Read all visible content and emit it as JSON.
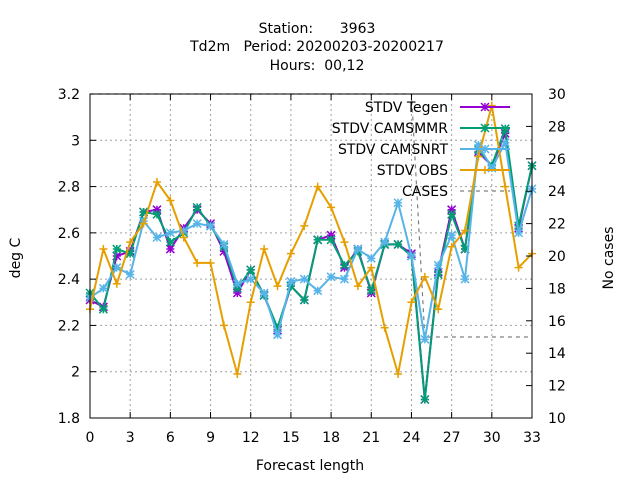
{
  "chart_data": {
    "type": "line",
    "title_lines": [
      "Station:      3963",
      "Td2m   Period: 20200203-20200217",
      "Hours:  00,12"
    ],
    "xlabel": "Forecast length",
    "ylabel": "deg C",
    "y2label": "No cases",
    "xlim": [
      0,
      33
    ],
    "ylim": [
      1.8,
      3.2
    ],
    "y2lim": [
      10,
      30
    ],
    "xticks": [
      0,
      3,
      6,
      9,
      12,
      15,
      18,
      21,
      24,
      27,
      30,
      33
    ],
    "yticks": [
      1.8,
      2,
      2.2,
      2.4,
      2.6,
      2.8,
      3,
      3.2
    ],
    "y2ticks": [
      10,
      12,
      14,
      16,
      18,
      20,
      22,
      24,
      26,
      28,
      30
    ],
    "grid": true,
    "legend_position": "top-right",
    "x": [
      0,
      1,
      2,
      3,
      4,
      5,
      6,
      7,
      8,
      9,
      10,
      11,
      12,
      13,
      14,
      15,
      16,
      17,
      18,
      19,
      20,
      21,
      22,
      23,
      24,
      25,
      26,
      27,
      28,
      29,
      30,
      31,
      32,
      33
    ],
    "series": [
      {
        "name": "STDV Tegen",
        "color": "#9400d3",
        "marker": "star",
        "axis": "y1",
        "values": [
          2.31,
          2.28,
          2.5,
          2.52,
          2.69,
          2.7,
          2.53,
          2.62,
          2.7,
          2.64,
          2.52,
          2.34,
          2.44,
          2.33,
          2.18,
          2.37,
          2.31,
          2.57,
          2.59,
          2.45,
          2.53,
          2.34,
          2.55,
          2.55,
          2.51,
          1.88,
          2.43,
          2.7,
          2.53,
          2.95,
          2.89,
          3.03,
          2.62,
          2.89
        ]
      },
      {
        "name": "STDV CAMSMMR",
        "color": "#009e73",
        "marker": "star",
        "axis": "y1",
        "values": [
          2.34,
          2.27,
          2.53,
          2.51,
          2.69,
          2.68,
          2.56,
          2.6,
          2.71,
          2.63,
          2.54,
          2.36,
          2.44,
          2.33,
          2.19,
          2.37,
          2.31,
          2.57,
          2.57,
          2.46,
          2.52,
          2.35,
          2.55,
          2.55,
          2.5,
          1.88,
          2.42,
          2.68,
          2.53,
          2.96,
          2.89,
          3.05,
          2.63,
          2.89
        ]
      },
      {
        "name": "STDV CAMSNRT",
        "color": "#56b4e9",
        "marker": "star",
        "axis": "y1",
        "values": [
          2.32,
          2.36,
          2.45,
          2.42,
          2.65,
          2.58,
          2.6,
          2.61,
          2.64,
          2.63,
          2.55,
          2.38,
          2.4,
          2.34,
          2.16,
          2.39,
          2.4,
          2.35,
          2.41,
          2.4,
          2.53,
          2.49,
          2.56,
          2.73,
          2.5,
          2.14,
          2.46,
          2.59,
          2.4,
          2.98,
          2.88,
          2.99,
          2.6,
          2.79
        ]
      },
      {
        "name": "STDV OBS",
        "color": "#e69f00",
        "marker": "plus",
        "axis": "y1",
        "values": [
          2.27,
          2.53,
          2.38,
          2.56,
          2.64,
          2.82,
          2.74,
          2.58,
          2.47,
          2.47,
          2.2,
          1.99,
          2.3,
          2.53,
          2.37,
          2.51,
          2.63,
          2.8,
          2.71,
          2.56,
          2.37,
          2.45,
          2.19,
          1.99,
          2.3,
          2.41,
          2.27,
          2.54,
          2.61,
          2.93,
          3.15,
          2.8,
          2.45,
          2.51
        ]
      },
      {
        "name": "CASES",
        "color": "#808080",
        "marker": "none",
        "dashed": true,
        "axis": "y2",
        "values": [
          30,
          30,
          30,
          30,
          30,
          30,
          30,
          30,
          30,
          30,
          30,
          30,
          30,
          30,
          30,
          30,
          30,
          30,
          30,
          30,
          30,
          30,
          30,
          30,
          30,
          15,
          15,
          15,
          15,
          15,
          15,
          15,
          15,
          15
        ]
      }
    ]
  }
}
